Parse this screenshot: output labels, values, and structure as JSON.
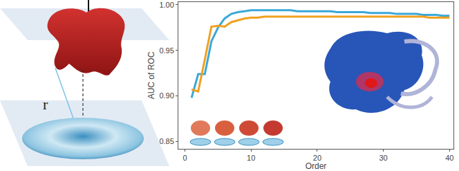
{
  "chart_data": {
    "type": "line",
    "x_label": "Order",
    "y_label": "AUC of ROC",
    "xlim": [
      -1,
      40.6
    ],
    "xticks": [
      0,
      10,
      20,
      30,
      40
    ],
    "ylim": [
      0.842,
      1.003
    ],
    "yticks": [
      0.85,
      {
        "value": 0.9,
        "label": "0.90"
      },
      0.95,
      {
        "value": 1.0,
        "label": "1.00"
      }
    ],
    "grid": false,
    "x": [
      1,
      2,
      3,
      4,
      5,
      6,
      7,
      8,
      9,
      10,
      11,
      12,
      13,
      14,
      15,
      16,
      17,
      18,
      19,
      20,
      21,
      22,
      23,
      24,
      25,
      26,
      27,
      28,
      29,
      30,
      31,
      32,
      33,
      34,
      35,
      36,
      37,
      38,
      39,
      40
    ],
    "series": [
      {
        "color": "#3aa8d8",
        "values": [
          0.898,
          0.924,
          0.924,
          0.96,
          0.975,
          0.985,
          0.99,
          0.992,
          0.993,
          0.994,
          0.994,
          0.994,
          0.994,
          0.994,
          0.994,
          0.994,
          0.993,
          0.993,
          0.993,
          0.993,
          0.993,
          0.993,
          0.992,
          0.992,
          0.992,
          0.992,
          0.992,
          0.991,
          0.991,
          0.991,
          0.991,
          0.99,
          0.99,
          0.99,
          0.99,
          0.989,
          0.989,
          0.989,
          0.988,
          0.988
        ]
      },
      {
        "color": "#f0a020",
        "values": [
          0.907,
          0.905,
          0.94,
          0.976,
          0.977,
          0.976,
          0.981,
          0.983,
          0.985,
          0.986,
          0.986,
          0.987,
          0.987,
          0.987,
          0.987,
          0.987,
          0.987,
          0.987,
          0.987,
          0.987,
          0.987,
          0.987,
          0.987,
          0.987,
          0.987,
          0.987,
          0.987,
          0.987,
          0.987,
          0.987,
          0.987,
          0.987,
          0.987,
          0.987,
          0.987,
          0.987,
          0.986,
          0.986,
          0.986,
          0.986
        ]
      }
    ],
    "annotations": [
      {
        "text": "r"
      }
    ]
  }
}
